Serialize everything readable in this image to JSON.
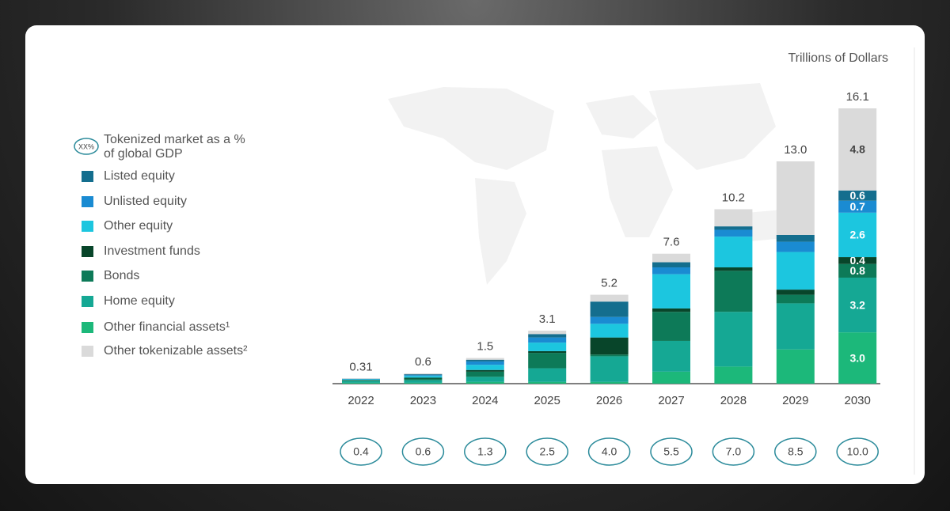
{
  "chart_data": {
    "type": "stacked-bar",
    "unit_label": "Trillions of Dollars",
    "categories": [
      "2022",
      "2023",
      "2024",
      "2025",
      "2026",
      "2027",
      "2028",
      "2029",
      "2030"
    ],
    "series": [
      {
        "name": "Other financial assets¹",
        "color": "#1cb87a",
        "values": [
          0.05,
          0.05,
          0.1,
          0.1,
          0.1,
          0.7,
          1.0,
          2.0,
          3.0
        ],
        "value_labels": [
          null,
          null,
          null,
          null,
          null,
          null,
          null,
          null,
          "3.0"
        ]
      },
      {
        "name": "Home equity",
        "color": "#15a894",
        "values": [
          0.1,
          0.15,
          0.3,
          0.8,
          1.5,
          1.8,
          3.2,
          2.7,
          3.2
        ],
        "value_labels": [
          null,
          null,
          null,
          null,
          null,
          null,
          null,
          null,
          "3.2"
        ]
      },
      {
        "name": "Bonds",
        "color": "#0d7a58",
        "values": [
          0.05,
          0.1,
          0.3,
          0.9,
          0.1,
          1.7,
          2.4,
          0.5,
          0.8
        ],
        "value_labels": [
          null,
          null,
          null,
          null,
          null,
          null,
          null,
          null,
          "0.8"
        ]
      },
      {
        "name": "Investment funds",
        "color": "#08452a",
        "values": [
          0.02,
          0.05,
          0.1,
          0.1,
          1.0,
          0.2,
          0.2,
          0.3,
          0.4
        ],
        "value_labels": [
          null,
          null,
          null,
          null,
          null,
          null,
          null,
          null,
          "0.4"
        ]
      },
      {
        "name": "Other equity",
        "color": "#1cc6df",
        "values": [
          0.04,
          0.1,
          0.3,
          0.5,
          0.8,
          2.0,
          1.8,
          2.2,
          2.6
        ],
        "value_labels": [
          null,
          null,
          null,
          null,
          null,
          null,
          null,
          null,
          "2.6"
        ]
      },
      {
        "name": "Unlisted equity",
        "color": "#1a8bd2",
        "values": [
          0.02,
          0.05,
          0.2,
          0.3,
          0.4,
          0.4,
          0.4,
          0.6,
          0.7
        ],
        "value_labels": [
          null,
          null,
          null,
          null,
          null,
          null,
          null,
          null,
          "0.7"
        ]
      },
      {
        "name": "Listed equity",
        "color": "#146e8e",
        "values": [
          0.01,
          0.05,
          0.1,
          0.2,
          0.9,
          0.3,
          0.2,
          0.4,
          0.6
        ],
        "value_labels": [
          null,
          null,
          null,
          null,
          null,
          null,
          null,
          null,
          "0.6"
        ]
      },
      {
        "name": "Other tokenizable assets²",
        "color": "#dadada",
        "values": [
          0.02,
          0.05,
          0.1,
          0.2,
          0.4,
          0.5,
          1.0,
          4.3,
          4.8
        ],
        "value_labels": [
          null,
          null,
          null,
          null,
          null,
          null,
          null,
          null,
          "4.8"
        ]
      }
    ],
    "totals": [
      0.31,
      0.6,
      1.5,
      3.1,
      5.2,
      7.6,
      10.2,
      13.0,
      16.1
    ],
    "total_labels": [
      "0.31",
      "0.6",
      "1.5",
      "3.1",
      "5.2",
      "7.6",
      "10.2",
      "13.0",
      "16.1"
    ],
    "gdp_legend_icon": "XX%",
    "gdp_legend_text": [
      "Tokenized market as a %",
      "of global GDP"
    ],
    "gdp_share": [
      0.4,
      0.6,
      1.3,
      2.5,
      4.0,
      5.5,
      7.0,
      8.5,
      10.0
    ],
    "gdp_share_labels": [
      "0.4",
      "0.6",
      "1.3",
      "2.5",
      "4.0",
      "5.5",
      "7.0",
      "8.5",
      "10.0"
    ]
  }
}
